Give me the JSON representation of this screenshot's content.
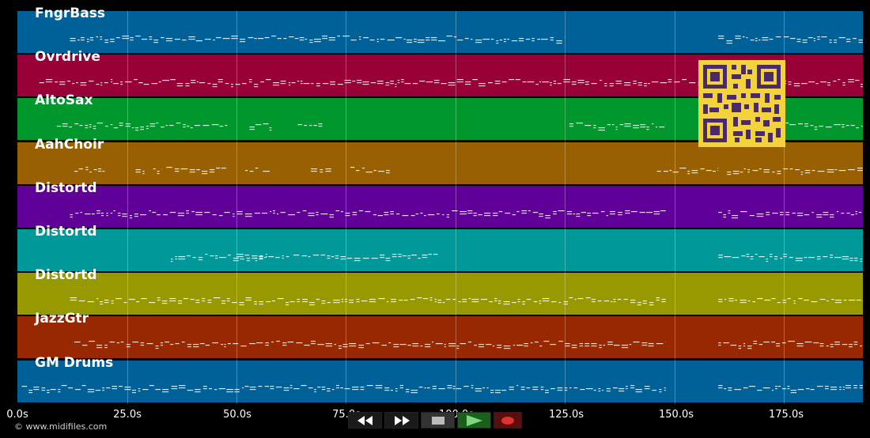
{
  "timeline": {
    "tick_labels": [
      "0.0s",
      "25.0s",
      "50.0s",
      "75.0s",
      "100.0s",
      "125.0s",
      "150.0s",
      "175.0s"
    ],
    "seconds_max": 193
  },
  "tracks": [
    {
      "name": "FngrBass",
      "color": "#006098"
    },
    {
      "name": "Ovrdrive",
      "color": "#980038"
    },
    {
      "name": "AltoSax",
      "color": "#00982c"
    },
    {
      "name": "AahChoir",
      "color": "#986000"
    },
    {
      "name": "Distortd",
      "color": "#600098"
    },
    {
      "name": "Distortd",
      "color": "#009898"
    },
    {
      "name": "Distortd",
      "color": "#989800"
    },
    {
      "name": "JazzGtr",
      "color": "#982800"
    },
    {
      "name": "GM Drums",
      "color": "#006098"
    }
  ],
  "credit": "© www.midifiles.com",
  "transport": {
    "buttons": [
      {
        "name": "rewind-button",
        "icon": "rewind-icon"
      },
      {
        "name": "fast-forward-button",
        "icon": "fast-forward-icon"
      },
      {
        "name": "stop-button",
        "icon": "stop-icon"
      },
      {
        "name": "play-button",
        "icon": "play-icon"
      },
      {
        "name": "record-button",
        "icon": "record-icon"
      }
    ]
  },
  "qr_code": {
    "icon": "qr-code-icon"
  }
}
